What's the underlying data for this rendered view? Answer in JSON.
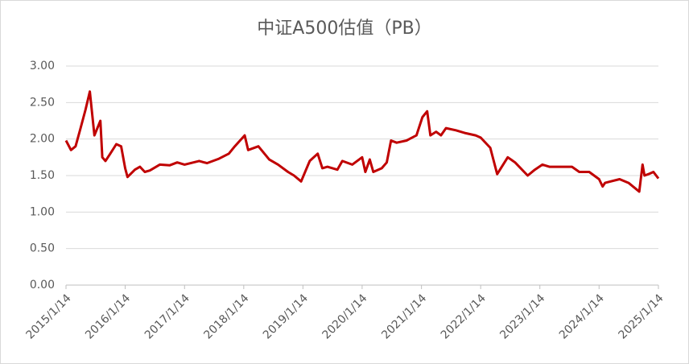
{
  "chart_data": {
    "type": "line",
    "title": "中证A500估值（PB）",
    "x": [
      "2015/1/14",
      "2015/2/14",
      "2015/3/14",
      "2015/4/14",
      "2015/5/14",
      "2015/6/10",
      "2015/7/8",
      "2015/8/14",
      "2015/8/26",
      "2015/9/14",
      "2015/10/14",
      "2015/11/20",
      "2015/12/20",
      "2016/1/14",
      "2016/1/28",
      "2016/3/14",
      "2016/4/14",
      "2016/5/14",
      "2016/6/14",
      "2016/8/14",
      "2016/10/14",
      "2016/11/30",
      "2017/1/14",
      "2017/4/14",
      "2017/6/1",
      "2017/8/14",
      "2017/10/14",
      "2017/11/20",
      "2018/1/20",
      "2018/2/10",
      "2018/4/14",
      "2018/6/20",
      "2018/8/14",
      "2018/10/14",
      "2018/11/20",
      "2019/1/3",
      "2019/2/25",
      "2019/4/15",
      "2019/5/14",
      "2019/6/14",
      "2019/8/14",
      "2019/9/14",
      "2019/11/14",
      "2020/1/14",
      "2020/2/3",
      "2020/3/1",
      "2020/3/23",
      "2020/5/14",
      "2020/6/14",
      "2020/7/10",
      "2020/8/14",
      "2020/10/14",
      "2020/12/14",
      "2021/1/20",
      "2021/2/18",
      "2021/3/10",
      "2021/4/14",
      "2021/5/14",
      "2021/6/14",
      "2021/8/14",
      "2021/10/14",
      "2021/12/14",
      "2022/1/14",
      "2022/3/14",
      "2022/4/26",
      "2022/6/30",
      "2022/8/14",
      "2022/10/31",
      "2022/12/14",
      "2023/1/30",
      "2023/3/14",
      "2023/5/14",
      "2023/7/31",
      "2023/9/14",
      "2023/11/14",
      "2024/1/14",
      "2024/2/5",
      "2024/2/20",
      "2024/5/20",
      "2024/7/14",
      "2024/9/18",
      "2024/10/8",
      "2024/10/20",
      "2024/11/14",
      "2024/12/14",
      "2025/1/14"
    ],
    "series": [
      {
        "name": "PB",
        "color": "#c00000",
        "values": [
          1.98,
          1.85,
          1.9,
          2.15,
          2.4,
          2.65,
          2.05,
          2.25,
          1.75,
          1.7,
          1.8,
          1.93,
          1.9,
          1.6,
          1.48,
          1.58,
          1.62,
          1.55,
          1.57,
          1.65,
          1.64,
          1.68,
          1.65,
          1.7,
          1.67,
          1.73,
          1.8,
          1.9,
          2.05,
          1.85,
          1.9,
          1.72,
          1.65,
          1.55,
          1.5,
          1.42,
          1.7,
          1.8,
          1.6,
          1.62,
          1.58,
          1.7,
          1.65,
          1.75,
          1.55,
          1.72,
          1.55,
          1.6,
          1.68,
          1.98,
          1.95,
          1.98,
          2.05,
          2.3,
          2.38,
          2.05,
          2.1,
          2.05,
          2.15,
          2.12,
          2.08,
          2.05,
          2.02,
          1.88,
          1.52,
          1.75,
          1.68,
          1.5,
          1.58,
          1.65,
          1.62,
          1.62,
          1.62,
          1.55,
          1.55,
          1.45,
          1.35,
          1.4,
          1.45,
          1.4,
          1.28,
          1.65,
          1.5,
          1.52,
          1.55,
          1.46
        ]
      }
    ],
    "xlim": [
      "2015/1/14",
      "2025/1/14"
    ],
    "xticks": [
      "2015/1/14",
      "2016/1/14",
      "2017/1/14",
      "2018/1/14",
      "2019/1/14",
      "2020/1/14",
      "2021/1/14",
      "2022/1/14",
      "2023/1/14",
      "2024/1/14",
      "2025/1/14"
    ],
    "ylim": [
      0,
      3
    ],
    "yticks": [
      {
        "value": 0,
        "label": "0.00"
      },
      {
        "value": 0.5,
        "label": "0.50"
      },
      {
        "value": 1,
        "label": "1.00"
      },
      {
        "value": 1.5,
        "label": "1.50"
      },
      {
        "value": 2,
        "label": "2.00"
      },
      {
        "value": 2.5,
        "label": "2.50"
      },
      {
        "value": 3,
        "label": "3.00"
      }
    ],
    "grid": true
  }
}
